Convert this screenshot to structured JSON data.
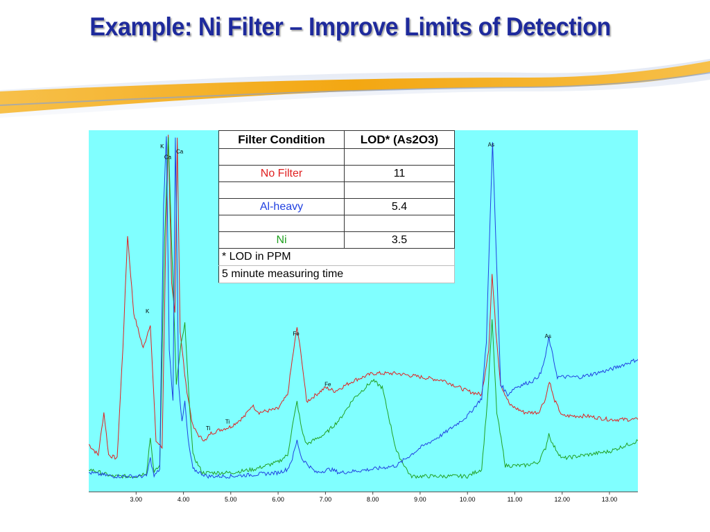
{
  "slide": {
    "title": "Example: Ni Filter – Improve Limits of Detection"
  },
  "table": {
    "headers": [
      "Filter Condition",
      "LOD* (As2O3)"
    ],
    "rows": [
      {
        "condition": "",
        "value": ""
      },
      {
        "condition": "No Filter",
        "value": "11",
        "color": "#e02020"
      },
      {
        "condition": "",
        "value": ""
      },
      {
        "condition": "Al-heavy",
        "value": "5.4",
        "color": "#2040e0"
      },
      {
        "condition": "",
        "value": ""
      },
      {
        "condition": "Ni",
        "value": "3.5",
        "color": "#20a020"
      }
    ],
    "notes": [
      "* LOD in PPM",
      "5 minute measuring time"
    ]
  },
  "colors": {
    "plot_background": "#80ffff",
    "title": "#1e2a9c",
    "swoosh_orange": "#f3a712",
    "swoosh_blue": "#8ea2c8"
  },
  "chart_data": {
    "type": "line",
    "xlabel": "",
    "ylabel": "",
    "xlim": [
      2.0,
      13.6
    ],
    "ylim": [
      0,
      100
    ],
    "x_ticks": [
      "3.00",
      "4.00",
      "5.00",
      "6.00",
      "7.00",
      "8.00",
      "9.00",
      "10.00",
      "11.00",
      "12.00",
      "13.00"
    ],
    "grid": false,
    "series": [
      {
        "color": "#e02020",
        "points": [
          [
            2.0,
            13
          ],
          [
            2.2,
            10
          ],
          [
            2.32,
            22
          ],
          [
            2.42,
            10
          ],
          [
            2.6,
            9
          ],
          [
            2.72,
            40
          ],
          [
            2.82,
            72
          ],
          [
            2.95,
            50
          ],
          [
            3.15,
            40
          ],
          [
            3.3,
            47
          ],
          [
            3.42,
            14
          ],
          [
            3.55,
            12
          ],
          [
            3.62,
            65
          ],
          [
            3.68,
            100
          ],
          [
            3.75,
            58
          ],
          [
            3.82,
            50
          ],
          [
            3.87,
            100
          ],
          [
            3.93,
            45
          ],
          [
            4.05,
            30
          ],
          [
            4.2,
            18
          ],
          [
            4.35,
            15
          ],
          [
            4.48,
            14
          ],
          [
            4.56,
            16
          ],
          [
            4.75,
            17
          ],
          [
            5.0,
            18
          ],
          [
            5.3,
            21
          ],
          [
            5.45,
            24
          ],
          [
            5.6,
            22
          ],
          [
            6.0,
            23
          ],
          [
            6.2,
            27
          ],
          [
            6.3,
            37
          ],
          [
            6.4,
            46
          ],
          [
            6.5,
            37
          ],
          [
            6.6,
            25
          ],
          [
            6.8,
            27
          ],
          [
            7.0,
            29
          ],
          [
            7.2,
            28
          ],
          [
            7.6,
            31
          ],
          [
            8.0,
            33
          ],
          [
            8.5,
            33
          ],
          [
            9.0,
            32
          ],
          [
            9.5,
            31
          ],
          [
            10.0,
            28
          ],
          [
            10.3,
            27
          ],
          [
            10.45,
            40
          ],
          [
            10.52,
            61
          ],
          [
            10.6,
            45
          ],
          [
            10.7,
            30
          ],
          [
            10.9,
            24
          ],
          [
            11.2,
            22
          ],
          [
            11.5,
            22
          ],
          [
            11.65,
            26
          ],
          [
            11.73,
            31
          ],
          [
            11.82,
            26
          ],
          [
            12.0,
            21
          ],
          [
            12.5,
            21
          ],
          [
            13.0,
            20
          ],
          [
            13.6,
            20
          ]
        ]
      },
      {
        "color": "#20a020",
        "points": [
          [
            2.0,
            6
          ],
          [
            2.5,
            4
          ],
          [
            3.0,
            4
          ],
          [
            3.22,
            5
          ],
          [
            3.3,
            15
          ],
          [
            3.38,
            5
          ],
          [
            3.5,
            7
          ],
          [
            3.6,
            70
          ],
          [
            3.68,
            100
          ],
          [
            3.75,
            70
          ],
          [
            3.85,
            30
          ],
          [
            3.95,
            41
          ],
          [
            4.03,
            47
          ],
          [
            4.1,
            30
          ],
          [
            4.2,
            10
          ],
          [
            4.4,
            5
          ],
          [
            5.0,
            5
          ],
          [
            5.5,
            6
          ],
          [
            6.0,
            8
          ],
          [
            6.2,
            10
          ],
          [
            6.3,
            18
          ],
          [
            6.4,
            25
          ],
          [
            6.5,
            17
          ],
          [
            6.6,
            13
          ],
          [
            7.0,
            16
          ],
          [
            7.3,
            20
          ],
          [
            7.6,
            26
          ],
          [
            8.0,
            31
          ],
          [
            8.2,
            29
          ],
          [
            8.5,
            11
          ],
          [
            8.8,
            4
          ],
          [
            9.5,
            4
          ],
          [
            10.0,
            4
          ],
          [
            10.3,
            6
          ],
          [
            10.42,
            25
          ],
          [
            10.52,
            48
          ],
          [
            10.62,
            22
          ],
          [
            10.8,
            7
          ],
          [
            11.2,
            7
          ],
          [
            11.5,
            8
          ],
          [
            11.65,
            12
          ],
          [
            11.72,
            16
          ],
          [
            11.8,
            13
          ],
          [
            12.0,
            9
          ],
          [
            13.0,
            11
          ],
          [
            13.6,
            14
          ]
        ]
      },
      {
        "color": "#2040e0",
        "points": [
          [
            2.0,
            5
          ],
          [
            2.5,
            4
          ],
          [
            3.0,
            4
          ],
          [
            3.22,
            4
          ],
          [
            3.3,
            9
          ],
          [
            3.38,
            4
          ],
          [
            3.5,
            6
          ],
          [
            3.58,
            80
          ],
          [
            3.64,
            100
          ],
          [
            3.7,
            40
          ],
          [
            3.78,
            25
          ],
          [
            3.83,
            100
          ],
          [
            3.9,
            30
          ],
          [
            3.97,
            19
          ],
          [
            4.03,
            25
          ],
          [
            4.1,
            14
          ],
          [
            4.2,
            6
          ],
          [
            4.5,
            4
          ],
          [
            5.0,
            4
          ],
          [
            6.0,
            5
          ],
          [
            6.2,
            6
          ],
          [
            6.3,
            9
          ],
          [
            6.4,
            14
          ],
          [
            6.5,
            9
          ],
          [
            6.8,
            5
          ],
          [
            7.1,
            6
          ],
          [
            7.3,
            5
          ],
          [
            8.0,
            6
          ],
          [
            8.5,
            7
          ],
          [
            9.0,
            12
          ],
          [
            9.5,
            16
          ],
          [
            10.0,
            21
          ],
          [
            10.3,
            26
          ],
          [
            10.4,
            42
          ],
          [
            10.48,
            78
          ],
          [
            10.53,
            98
          ],
          [
            10.6,
            70
          ],
          [
            10.7,
            30
          ],
          [
            10.85,
            27
          ],
          [
            11.0,
            29
          ],
          [
            11.4,
            31
          ],
          [
            11.55,
            33
          ],
          [
            11.65,
            38
          ],
          [
            11.72,
            43
          ],
          [
            11.8,
            38
          ],
          [
            11.9,
            32
          ],
          [
            12.4,
            32
          ],
          [
            13.0,
            34
          ],
          [
            13.6,
            37
          ]
        ]
      }
    ],
    "annotations": [
      {
        "text": "K",
        "x": 3.55,
        "y": 96.5
      },
      {
        "text": "Ca",
        "x": 3.67,
        "y": 93.5
      },
      {
        "text": "Ca",
        "x": 3.92,
        "y": 95
      },
      {
        "text": "K",
        "x": 3.24,
        "y": 50
      },
      {
        "text": "Ti",
        "x": 4.52,
        "y": 17
      },
      {
        "text": "Ti",
        "x": 4.93,
        "y": 18.8
      },
      {
        "text": "Fe",
        "x": 6.38,
        "y": 43.7
      },
      {
        "text": "Fe",
        "x": 7.05,
        "y": 29.4
      },
      {
        "text": "As",
        "x": 10.5,
        "y": 97
      },
      {
        "text": "As",
        "x": 11.7,
        "y": 43
      }
    ]
  }
}
